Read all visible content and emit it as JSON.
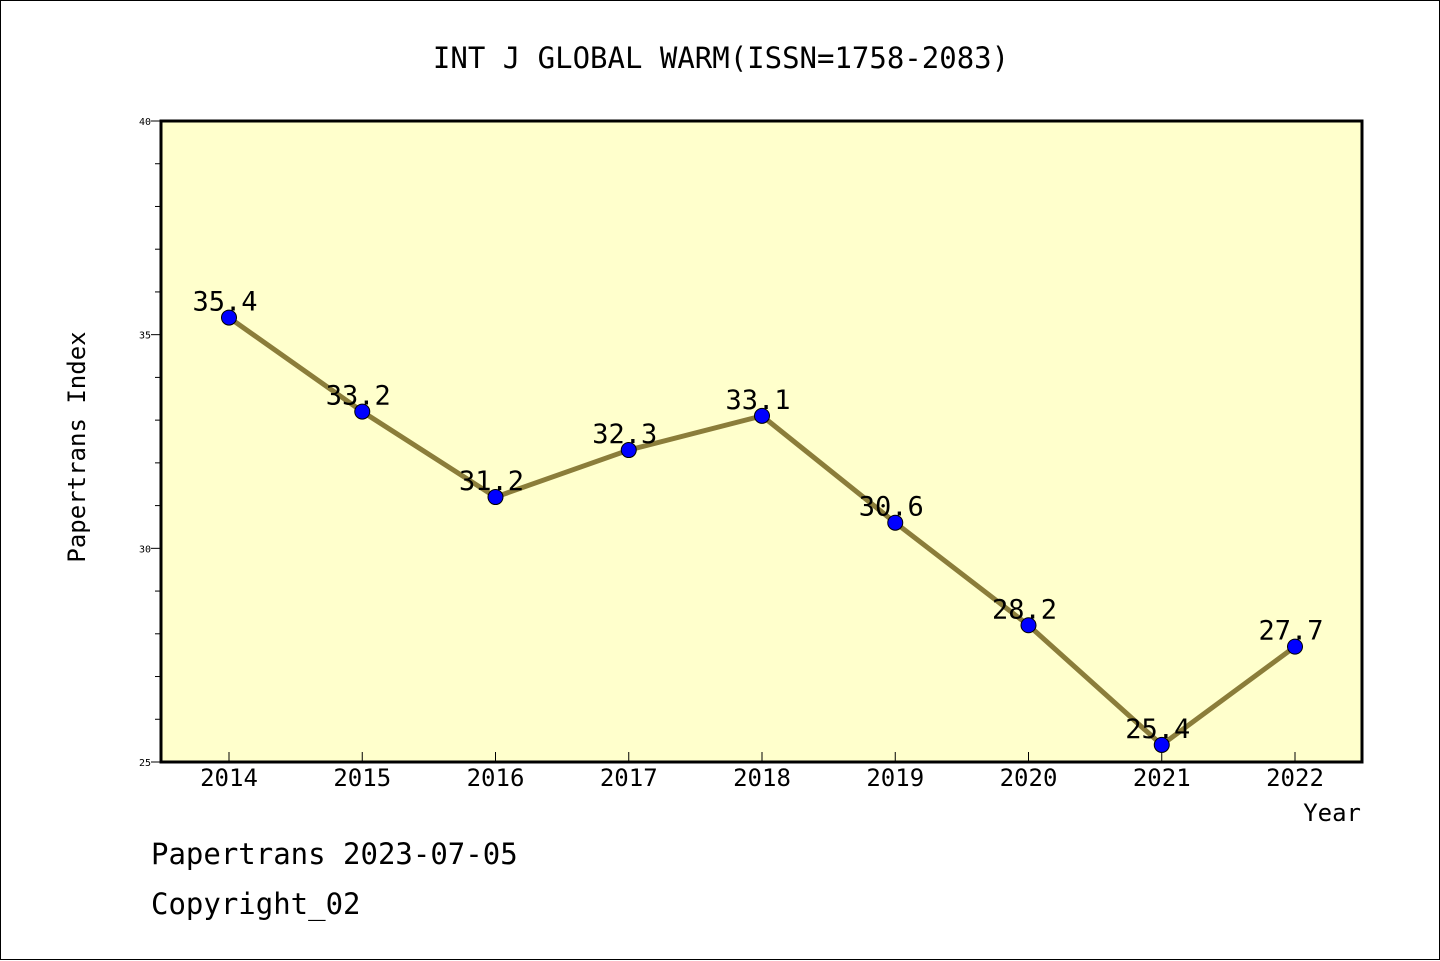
{
  "chart_data": {
    "type": "line",
    "title": "INT J GLOBAL WARM(ISSN=1758-2083)",
    "xlabel": "Year",
    "ylabel": "Papertrans Index",
    "categories": [
      "2014",
      "2015",
      "2016",
      "2017",
      "2018",
      "2019",
      "2020",
      "2021",
      "2022"
    ],
    "series": [
      {
        "values": [
          35.4,
          33.2,
          31.2,
          32.3,
          33.1,
          30.6,
          28.2,
          25.4,
          27.7
        ],
        "data_labels": [
          "35.4",
          "33.2",
          "31.2",
          "32.3",
          "33.1",
          "30.6",
          "28.2",
          "25.4",
          "27.7"
        ]
      }
    ],
    "ylim": [
      25,
      40
    ],
    "yticks": [
      "25",
      "30",
      "35",
      "40"
    ],
    "grid": false,
    "colors": {
      "plot_background": "#ffffcc",
      "line": "#8b7d3a",
      "marker": "#0000ff"
    }
  },
  "footer": {
    "line1": "Papertrans 2023-07-05",
    "line2": "Copyright_02"
  }
}
